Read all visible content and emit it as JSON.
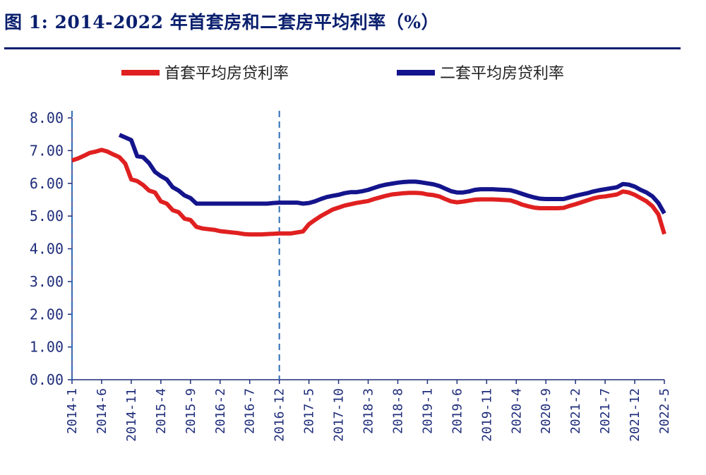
{
  "title": "图 1:  2014-2022 年首套房和二套房平均利率（%）",
  "chart_data": {
    "type": "line",
    "title": "图 1:  2014-2022 年首套房和二套房平均利率（%）",
    "xlabel": "",
    "ylabel": "",
    "ylim": [
      0,
      8
    ],
    "yticks": [
      "0.00",
      "1.00",
      "2.00",
      "3.00",
      "4.00",
      "5.00",
      "6.00",
      "7.00",
      "8.00"
    ],
    "xticks": [
      "2014-1",
      "2014-6",
      "2014-11",
      "2015-4",
      "2015-9",
      "2016-2",
      "2016-7",
      "2016-12",
      "2017-5",
      "2017-10",
      "2018-3",
      "2018-8",
      "2019-1",
      "2019-6",
      "2019-11",
      "2020-4",
      "2020-9",
      "2021-2",
      "2021-7",
      "2021-12",
      "2022-5"
    ],
    "legend_position": "top",
    "grid": false,
    "vlines": [
      "2014-1",
      "2016-12"
    ],
    "colors": {
      "first": "#e02020",
      "second": "#14148c",
      "axis": "#1f2d7a",
      "vline": "#2e6db5"
    },
    "series": [
      {
        "name": "首套平均房贷利率",
        "points": [
          [
            "2014-1",
            6.7
          ],
          [
            "2014-2",
            6.76
          ],
          [
            "2014-3",
            6.84
          ],
          [
            "2014-4",
            6.93
          ],
          [
            "2014-5",
            6.97
          ],
          [
            "2014-6",
            7.02
          ],
          [
            "2014-7",
            6.97
          ],
          [
            "2014-8",
            6.88
          ],
          [
            "2014-9",
            6.8
          ],
          [
            "2014-10",
            6.6
          ],
          [
            "2014-11",
            6.12
          ],
          [
            "2014-12",
            6.07
          ],
          [
            "2015-1",
            5.95
          ],
          [
            "2015-2",
            5.78
          ],
          [
            "2015-3",
            5.72
          ],
          [
            "2015-4",
            5.45
          ],
          [
            "2015-5",
            5.38
          ],
          [
            "2015-6",
            5.18
          ],
          [
            "2015-7",
            5.12
          ],
          [
            "2015-8",
            4.92
          ],
          [
            "2015-9",
            4.88
          ],
          [
            "2015-10",
            4.67
          ],
          [
            "2015-11",
            4.62
          ],
          [
            "2015-12",
            4.6
          ],
          [
            "2016-1",
            4.58
          ],
          [
            "2016-2",
            4.54
          ],
          [
            "2016-3",
            4.52
          ],
          [
            "2016-4",
            4.5
          ],
          [
            "2016-5",
            4.48
          ],
          [
            "2016-6",
            4.45
          ],
          [
            "2016-7",
            4.44
          ],
          [
            "2016-8",
            4.44
          ],
          [
            "2016-9",
            4.44
          ],
          [
            "2016-10",
            4.45
          ],
          [
            "2016-11",
            4.46
          ],
          [
            "2016-12",
            4.47
          ],
          [
            "2017-1",
            4.47
          ],
          [
            "2017-2",
            4.47
          ],
          [
            "2017-3",
            4.5
          ],
          [
            "2017-4",
            4.53
          ],
          [
            "2017-5",
            4.75
          ],
          [
            "2017-6",
            4.88
          ],
          [
            "2017-7",
            5.0
          ],
          [
            "2017-8",
            5.1
          ],
          [
            "2017-9",
            5.2
          ],
          [
            "2017-10",
            5.26
          ],
          [
            "2017-11",
            5.32
          ],
          [
            "2017-12",
            5.36
          ],
          [
            "2018-1",
            5.4
          ],
          [
            "2018-2",
            5.43
          ],
          [
            "2018-3",
            5.46
          ],
          [
            "2018-4",
            5.52
          ],
          [
            "2018-5",
            5.57
          ],
          [
            "2018-6",
            5.62
          ],
          [
            "2018-7",
            5.66
          ],
          [
            "2018-8",
            5.68
          ],
          [
            "2018-9",
            5.7
          ],
          [
            "2018-10",
            5.71
          ],
          [
            "2018-11",
            5.71
          ],
          [
            "2018-12",
            5.7
          ],
          [
            "2019-1",
            5.66
          ],
          [
            "2019-2",
            5.64
          ],
          [
            "2019-3",
            5.6
          ],
          [
            "2019-4",
            5.52
          ],
          [
            "2019-5",
            5.45
          ],
          [
            "2019-6",
            5.42
          ],
          [
            "2019-7",
            5.44
          ],
          [
            "2019-8",
            5.47
          ],
          [
            "2019-9",
            5.5
          ],
          [
            "2019-10",
            5.51
          ],
          [
            "2019-11",
            5.51
          ],
          [
            "2019-12",
            5.51
          ],
          [
            "2020-1",
            5.5
          ],
          [
            "2020-2",
            5.49
          ],
          [
            "2020-3",
            5.48
          ],
          [
            "2020-4",
            5.42
          ],
          [
            "2020-5",
            5.35
          ],
          [
            "2020-6",
            5.3
          ],
          [
            "2020-7",
            5.26
          ],
          [
            "2020-8",
            5.24
          ],
          [
            "2020-9",
            5.24
          ],
          [
            "2020-10",
            5.24
          ],
          [
            "2020-11",
            5.24
          ],
          [
            "2020-12",
            5.25
          ],
          [
            "2021-1",
            5.31
          ],
          [
            "2021-2",
            5.36
          ],
          [
            "2021-3",
            5.42
          ],
          [
            "2021-4",
            5.48
          ],
          [
            "2021-5",
            5.54
          ],
          [
            "2021-6",
            5.58
          ],
          [
            "2021-7",
            5.6
          ],
          [
            "2021-8",
            5.63
          ],
          [
            "2021-9",
            5.66
          ],
          [
            "2021-10",
            5.75
          ],
          [
            "2021-11",
            5.72
          ],
          [
            "2021-12",
            5.65
          ],
          [
            "2022-1",
            5.55
          ],
          [
            "2022-2",
            5.45
          ],
          [
            "2022-3",
            5.3
          ],
          [
            "2022-4",
            5.05
          ],
          [
            "2022-5",
            4.45
          ]
        ]
      },
      {
        "name": "二套平均房贷利率",
        "points": [
          [
            "2014-9",
            7.48
          ],
          [
            "2014-10",
            7.4
          ],
          [
            "2014-11",
            7.32
          ],
          [
            "2014-12",
            6.83
          ],
          [
            "2015-1",
            6.8
          ],
          [
            "2015-2",
            6.62
          ],
          [
            "2015-3",
            6.35
          ],
          [
            "2015-4",
            6.22
          ],
          [
            "2015-5",
            6.12
          ],
          [
            "2015-6",
            5.88
          ],
          [
            "2015-7",
            5.78
          ],
          [
            "2015-8",
            5.63
          ],
          [
            "2015-9",
            5.55
          ],
          [
            "2015-10",
            5.38
          ],
          [
            "2015-11",
            5.38
          ],
          [
            "2015-12",
            5.38
          ],
          [
            "2016-1",
            5.38
          ],
          [
            "2016-2",
            5.38
          ],
          [
            "2016-3",
            5.38
          ],
          [
            "2016-4",
            5.38
          ],
          [
            "2016-5",
            5.38
          ],
          [
            "2016-6",
            5.38
          ],
          [
            "2016-7",
            5.38
          ],
          [
            "2016-8",
            5.38
          ],
          [
            "2016-9",
            5.38
          ],
          [
            "2016-10",
            5.38
          ],
          [
            "2016-11",
            5.4
          ],
          [
            "2016-12",
            5.41
          ],
          [
            "2017-1",
            5.41
          ],
          [
            "2017-2",
            5.41
          ],
          [
            "2017-3",
            5.41
          ],
          [
            "2017-4",
            5.38
          ],
          [
            "2017-5",
            5.4
          ],
          [
            "2017-6",
            5.45
          ],
          [
            "2017-7",
            5.52
          ],
          [
            "2017-8",
            5.58
          ],
          [
            "2017-9",
            5.62
          ],
          [
            "2017-10",
            5.65
          ],
          [
            "2017-11",
            5.7
          ],
          [
            "2017-12",
            5.73
          ],
          [
            "2018-1",
            5.73
          ],
          [
            "2018-2",
            5.76
          ],
          [
            "2018-3",
            5.8
          ],
          [
            "2018-4",
            5.86
          ],
          [
            "2018-5",
            5.92
          ],
          [
            "2018-6",
            5.96
          ],
          [
            "2018-7",
            5.99
          ],
          [
            "2018-8",
            6.02
          ],
          [
            "2018-9",
            6.04
          ],
          [
            "2018-10",
            6.05
          ],
          [
            "2018-11",
            6.05
          ],
          [
            "2018-12",
            6.03
          ],
          [
            "2019-1",
            6.0
          ],
          [
            "2019-2",
            5.97
          ],
          [
            "2019-3",
            5.92
          ],
          [
            "2019-4",
            5.84
          ],
          [
            "2019-5",
            5.76
          ],
          [
            "2019-6",
            5.72
          ],
          [
            "2019-7",
            5.72
          ],
          [
            "2019-8",
            5.75
          ],
          [
            "2019-9",
            5.8
          ],
          [
            "2019-10",
            5.82
          ],
          [
            "2019-11",
            5.82
          ],
          [
            "2019-12",
            5.82
          ],
          [
            "2020-1",
            5.81
          ],
          [
            "2020-2",
            5.8
          ],
          [
            "2020-3",
            5.79
          ],
          [
            "2020-4",
            5.74
          ],
          [
            "2020-5",
            5.68
          ],
          [
            "2020-6",
            5.62
          ],
          [
            "2020-7",
            5.57
          ],
          [
            "2020-8",
            5.53
          ],
          [
            "2020-9",
            5.52
          ],
          [
            "2020-10",
            5.52
          ],
          [
            "2020-11",
            5.52
          ],
          [
            "2020-12",
            5.52
          ],
          [
            "2021-1",
            5.57
          ],
          [
            "2021-2",
            5.62
          ],
          [
            "2021-3",
            5.66
          ],
          [
            "2021-4",
            5.7
          ],
          [
            "2021-5",
            5.75
          ],
          [
            "2021-6",
            5.79
          ],
          [
            "2021-7",
            5.82
          ],
          [
            "2021-8",
            5.85
          ],
          [
            "2021-9",
            5.88
          ],
          [
            "2021-10",
            5.98
          ],
          [
            "2021-11",
            5.96
          ],
          [
            "2021-12",
            5.9
          ],
          [
            "2022-1",
            5.8
          ],
          [
            "2022-2",
            5.72
          ],
          [
            "2022-3",
            5.6
          ],
          [
            "2022-4",
            5.4
          ],
          [
            "2022-5",
            5.08
          ]
        ]
      }
    ]
  }
}
